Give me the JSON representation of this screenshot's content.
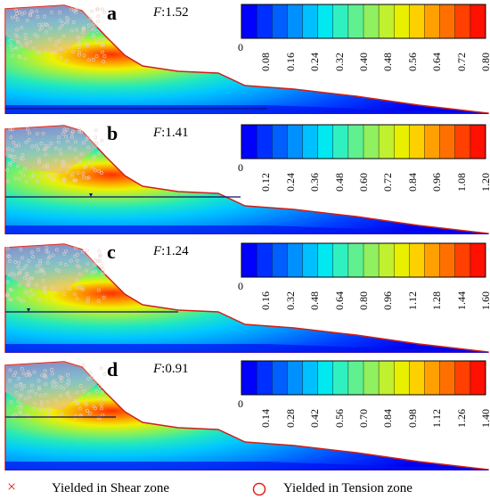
{
  "panels": [
    {
      "id": "a",
      "letter": "a",
      "f_prefix": "F",
      "f_value": ":1.52",
      "ticks": [
        "0",
        "0.08",
        "0.16",
        "0.24",
        "0.32",
        "0.40",
        "0.48",
        "0.56",
        "0.64",
        "0.72",
        "0.80"
      ],
      "water_table": false
    },
    {
      "id": "b",
      "letter": "b",
      "f_prefix": "F",
      "f_value": ":1.41",
      "ticks": [
        "0",
        "0.12",
        "0.24",
        "0.36",
        "0.48",
        "0.60",
        "0.72",
        "0.84",
        "0.96",
        "1.08",
        "1.20"
      ],
      "water_table": true
    },
    {
      "id": "c",
      "letter": "c",
      "f_prefix": "F",
      "f_value": ":1.24",
      "ticks": [
        "0",
        "0.16",
        "0.32",
        "0.48",
        "0.64",
        "0.80",
        "0.96",
        "1.12",
        "1.28",
        "1.44",
        "1.60"
      ],
      "water_table": true
    },
    {
      "id": "d",
      "letter": "d",
      "f_prefix": "F",
      "f_value": ":0.91",
      "ticks": [
        "0",
        "0.14",
        "0.28",
        "0.42",
        "0.56",
        "0.70",
        "0.84",
        "0.98",
        "1.12",
        "1.26",
        "1.40"
      ],
      "water_table": true
    }
  ],
  "legend": {
    "shear_symbol": "×",
    "shear_label": "Yielded in Shear zone",
    "tension_label": "Yielded in Tension zone",
    "shear_color": "#e0201b",
    "tension_color": "#e0201b"
  },
  "colorscale": [
    "#0000ff",
    "#0030ff",
    "#0060ff",
    "#0090ff",
    "#00c0ff",
    "#00e8f0",
    "#30f0c0",
    "#60f090",
    "#90f060",
    "#c0f030",
    "#e8f000",
    "#ffd000",
    "#ffa000",
    "#ff7000",
    "#ff4000",
    "#ff1000"
  ]
}
